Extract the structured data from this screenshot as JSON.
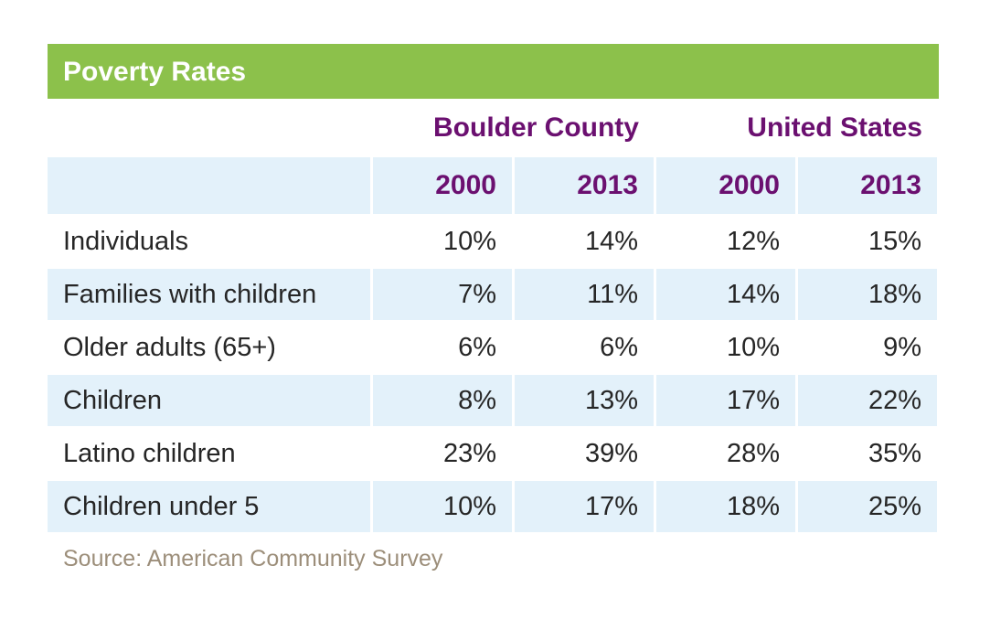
{
  "title": "Poverty Rates",
  "groups": [
    "Boulder County",
    "United States"
  ],
  "years": [
    "2000",
    "2013",
    "2000",
    "2013"
  ],
  "rows": [
    {
      "label": "Individuals",
      "values": [
        "10%",
        "14%",
        "12%",
        "15%"
      ]
    },
    {
      "label": "Families with children",
      "values": [
        "7%",
        "11%",
        "14%",
        "18%"
      ]
    },
    {
      "label": "Older adults (65+)",
      "values": [
        "6%",
        "6%",
        "10%",
        "9%"
      ]
    },
    {
      "label": "Children",
      "values": [
        "8%",
        "13%",
        "17%",
        "22%"
      ]
    },
    {
      "label": "Latino children",
      "values": [
        "23%",
        "39%",
        "28%",
        "35%"
      ]
    },
    {
      "label": "Children under 5",
      "values": [
        "10%",
        "17%",
        "18%",
        "25%"
      ]
    }
  ],
  "source": "Source: American Community Survey",
  "colors": {
    "banner": "#8cc14b",
    "header_text": "#6b1070",
    "row_shade": "#e3f1fa",
    "source_text": "#9c8e7a"
  }
}
